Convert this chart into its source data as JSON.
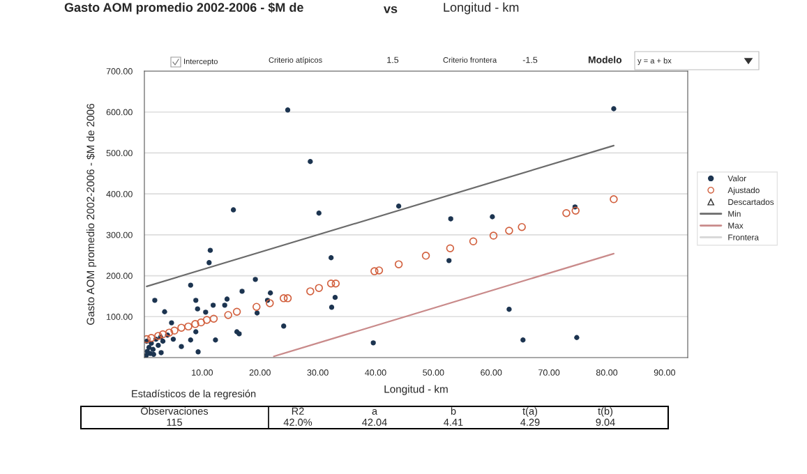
{
  "chart_data": {
    "type": "scatter",
    "title": "Gasto AOM promedio 2002-2006 - $M de",
    "xlabel": "Longitud - km",
    "ylabel": "Gasto AOM promedio 2002-2006 - $M de 2006",
    "xlim": [
      0,
      94
    ],
    "xticks": [
      {
        "value": 10,
        "label": "10.00"
      },
      {
        "value": 20,
        "label": "20.00"
      },
      {
        "value": 30,
        "label": "30.00"
      },
      {
        "value": 40,
        "label": "40.00"
      },
      {
        "value": 50,
        "label": "50.00"
      },
      {
        "value": 60,
        "label": "60.00"
      },
      {
        "value": 70,
        "label": "70.00"
      },
      {
        "value": 80,
        "label": "80.00"
      },
      {
        "value": 90,
        "label": "90.00"
      }
    ],
    "ylim": [
      0,
      700
    ],
    "yticks": [
      {
        "value": 100,
        "label": "100.00"
      },
      {
        "value": 200,
        "label": "200.00"
      },
      {
        "value": 300,
        "label": "300.00"
      },
      {
        "value": 400,
        "label": "400.00"
      },
      {
        "value": 500,
        "label": "500.00"
      },
      {
        "value": 600,
        "label": "600.00"
      },
      {
        "value": 700,
        "label": "700.00"
      }
    ],
    "grid": "y",
    "legend": "right",
    "series": [
      {
        "name": "Valor",
        "marker": "circle",
        "color": "#1c3450",
        "x": [
          24.8,
          28.7,
          15.4,
          30.2,
          44.0,
          11.4,
          11.2,
          32.3,
          19.2,
          8.0,
          1.8,
          16.9,
          21.8,
          8.9,
          14.3,
          11.9,
          13.9,
          9.2,
          33.0,
          32.4,
          21.3,
          3.5,
          10.6,
          19.5,
          4.7,
          24.1,
          16.0,
          16.4,
          8.9,
          8.0,
          12.3,
          6.4,
          9.3,
          2.9,
          39.6,
          81.2,
          53.0,
          60.2,
          74.5,
          52.7,
          63.1,
          65.5,
          74.8,
          0.3,
          0.5,
          0.8,
          1.0,
          1.2,
          1.5,
          2.0,
          2.4,
          2.8,
          3.2,
          4.0,
          0.4,
          1.6,
          5.0
        ],
        "values": [
          605,
          479,
          361,
          353,
          370,
          262,
          232,
          244,
          191,
          177,
          140,
          162,
          158,
          140,
          143,
          128,
          128,
          119,
          147,
          123,
          140,
          112,
          111,
          109,
          85,
          77,
          63,
          58,
          63,
          43,
          43,
          27,
          14,
          12,
          36,
          608,
          339,
          344,
          368,
          237,
          118,
          43,
          49,
          5,
          15,
          25,
          10,
          35,
          20,
          45,
          30,
          50,
          40,
          55,
          40,
          8,
          45
        ]
      },
      {
        "name": "Ajustado",
        "marker": "circle",
        "color": "#d2603e",
        "x": [
          39.8,
          40.6,
          44.0,
          48.7,
          52.9,
          56.9,
          60.4,
          63.1,
          65.3,
          73.0,
          74.6,
          81.2,
          28.7,
          30.2,
          32.3,
          33.1,
          24.1,
          24.8,
          21.7,
          19.4,
          16.0,
          14.5,
          12.0,
          10.8,
          8.8,
          6.4,
          4.3,
          2.4,
          0.4,
          1.2,
          3.2,
          5.2,
          7.6,
          9.8
        ],
        "values": [
          211,
          213,
          228,
          249,
          267,
          284,
          298,
          310,
          319,
          353,
          359,
          387,
          162,
          170,
          181,
          181,
          145,
          145,
          133,
          124,
          112,
          104,
          95,
          92,
          82,
          73,
          61,
          53,
          45,
          48,
          57,
          66,
          76,
          86
        ]
      },
      {
        "name": "Descartados",
        "marker": "triangle",
        "color": "#333333"
      },
      {
        "name": "Min",
        "type": "line",
        "color": "#6b6b6b",
        "x": [
          0.4,
          81.2
        ],
        "values": [
          174,
          518
        ]
      },
      {
        "name": "Max",
        "type": "line",
        "color": "#c98a8a",
        "x": [
          22.4,
          81.2
        ],
        "values": [
          3,
          254
        ]
      },
      {
        "name": "Frontera",
        "type": "line",
        "color": "#d6d6d6"
      }
    ],
    "annotations": [
      "vs",
      "Longitud - km",
      "Intercepto",
      "Criterio atípicos",
      "1.5",
      "Criterio frontera",
      "-1.5",
      "Modelo",
      "y = a + bx",
      "Estadísticos de la regresión",
      "Observaciones",
      "R2",
      "a",
      "b",
      "t(a)",
      "t(b)",
      "115",
      "42.0%",
      "42.04",
      "4.41",
      "4.29",
      "9.04"
    ]
  }
}
